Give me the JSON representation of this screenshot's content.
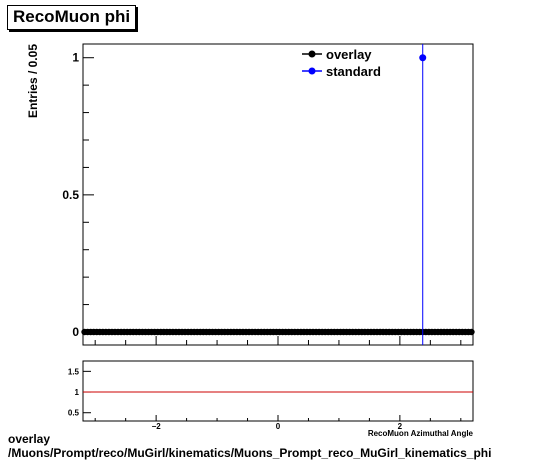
{
  "title": "RecoMuon phi",
  "footer": {
    "line1": "overlay",
    "line2": "/Muons/Prompt/reco/MuGirl/kinematics/Muons_Prompt_reco_MuGirl_kinematics_phi"
  },
  "colors": {
    "overlay": "#000000",
    "standard": "#0000ff",
    "ratio_line": "#cc0000"
  },
  "chart_data": [
    {
      "type": "line",
      "title": "RecoMuon phi",
      "ylabel": "Entries / 0.05",
      "xlim": [
        -3.2,
        3.2
      ],
      "ylim": [
        0,
        1.05
      ],
      "yticks": [
        0,
        0.5,
        1
      ],
      "ytick_labels": [
        "0",
        "0.5",
        "1"
      ],
      "legend_position": "top-right",
      "grid": false,
      "series": [
        {
          "name": "overlay",
          "marker": "circle",
          "color": "#000000",
          "description": "all bins at zero across the full range",
          "x_start": -3.2,
          "bin_width": 0.05,
          "constant_value": 0
        },
        {
          "name": "standard",
          "marker": "circle",
          "color": "#0000ff",
          "points": [
            {
              "x": 2.375,
              "y": 1
            }
          ]
        }
      ]
    },
    {
      "type": "line",
      "xlabel": "RecoMuon Azimuthal Angle",
      "xlim": [
        -3.2,
        3.2
      ],
      "ylim": [
        0.3,
        1.75
      ],
      "xticks": [
        -2,
        0,
        2
      ],
      "xtick_labels": [
        "−2",
        "0",
        "2"
      ],
      "yticks": [
        0.5,
        1,
        1.5
      ],
      "ytick_labels": [
        "0.5",
        "1",
        "1.5"
      ],
      "reference_line": 1
    }
  ]
}
